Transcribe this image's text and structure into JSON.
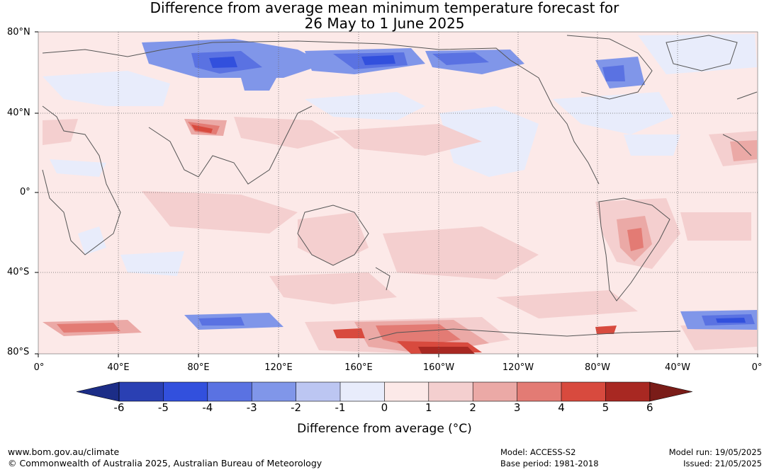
{
  "title_line1": "Difference from average mean minimum temperature forecast for",
  "title_line2": "26 May to 1 June 2025",
  "lat_labels": [
    "80°N",
    "40°N",
    "0°",
    "40°S",
    "80°S"
  ],
  "lon_labels": [
    "0°",
    "40°E",
    "80°E",
    "120°E",
    "160°E",
    "160°W",
    "120°W",
    "80°W",
    "40°W",
    "0°"
  ],
  "colorbar": {
    "ticks": [
      "-6",
      "-5",
      "-4",
      "-3",
      "-2",
      "-1",
      "0",
      "1",
      "2",
      "3",
      "4",
      "5",
      "6"
    ],
    "colors": [
      "#1c2d87",
      "#2a40b3",
      "#3250dd",
      "#5a72e2",
      "#8096e9",
      "#bcc6f2",
      "#e8ecfb",
      "#fce9e8",
      "#f4cfcf",
      "#eba9a6",
      "#e37b74",
      "#d84a3e",
      "#a82822",
      "#7a1c18"
    ],
    "label": "Difference from average (°C)"
  },
  "footer": {
    "website": "www.bom.gov.au/climate",
    "copyright": "© Commonwealth of Australia 2025, Australian Bureau of Meteorology",
    "model": "Model: ACCESS-S2",
    "base_period": "Base period: 1981-2018",
    "model_run": "Model run: 19/05/2025",
    "issued": "Issued: 21/05/2025"
  }
}
